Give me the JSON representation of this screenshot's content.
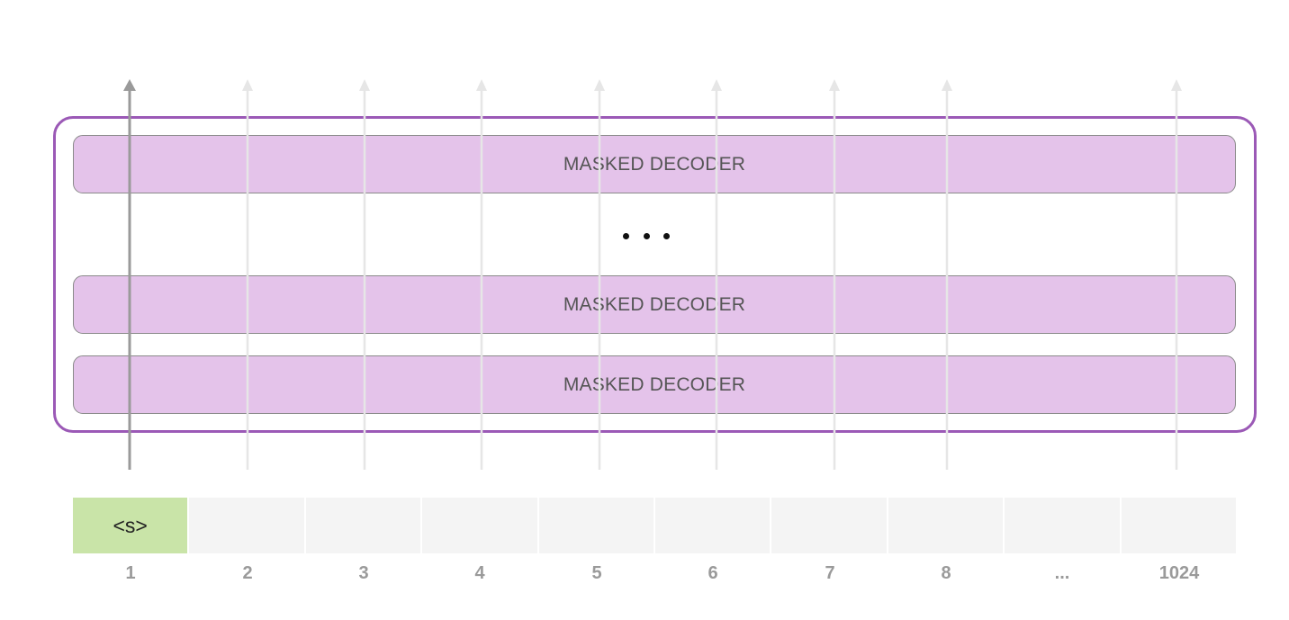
{
  "diagram": {
    "decoder_layers": [
      {
        "label": "MASKED DECODER"
      },
      {
        "label": "MASKED DECODER"
      },
      {
        "label": "MASKED DECODER"
      }
    ],
    "layer_ellipsis": "•••",
    "tokens": [
      {
        "text": "<s>",
        "position": "1",
        "filled": true
      },
      {
        "text": "",
        "position": "2",
        "filled": false
      },
      {
        "text": "",
        "position": "3",
        "filled": false
      },
      {
        "text": "",
        "position": "4",
        "filled": false
      },
      {
        "text": "",
        "position": "5",
        "filled": false
      },
      {
        "text": "",
        "position": "6",
        "filled": false
      },
      {
        "text": "",
        "position": "7",
        "filled": false
      },
      {
        "text": "",
        "position": "8",
        "filled": false
      },
      {
        "text": "",
        "position": "...",
        "filled": false
      },
      {
        "text": "",
        "position": "1024",
        "filled": false
      }
    ],
    "active_token_index": 0,
    "colors": {
      "outer_border": "#9b59b6",
      "decoder_fill": "#e4c3ea",
      "decoder_border": "#8a8a8a",
      "start_token_fill": "#c9e4a8",
      "empty_token_fill": "#f4f4f4",
      "active_arrow": "#9a9a9a",
      "inactive_arrow": "#e6e6e6"
    }
  }
}
